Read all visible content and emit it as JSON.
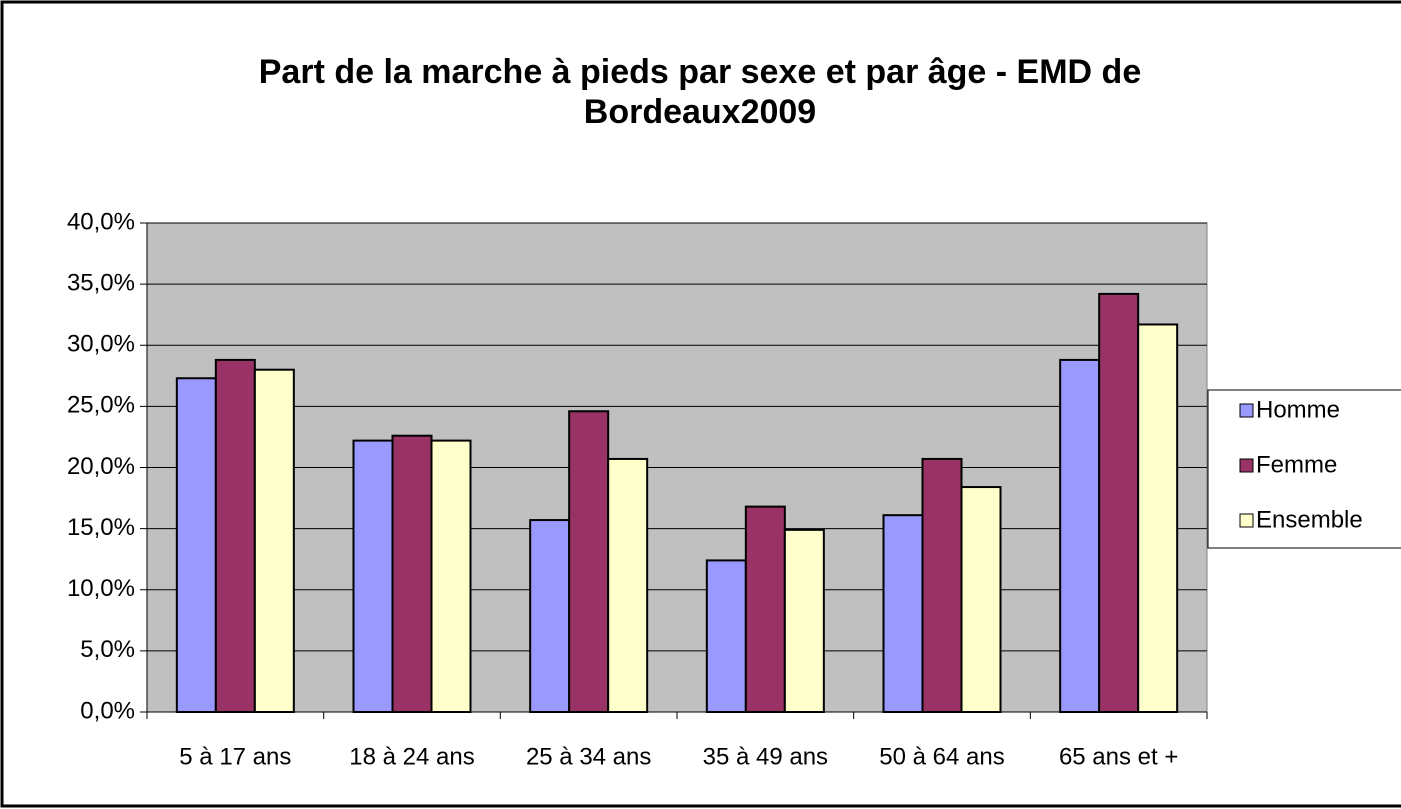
{
  "chart_data": {
    "type": "bar",
    "title": "Part de la marche à pieds par sexe et par âge - EMD de Bordeaux2009",
    "categories": [
      "5 à 17 ans",
      "18 à 24 ans",
      "25 à 34 ans",
      "35 à 49 ans",
      "50 à 64 ans",
      "65 ans et +"
    ],
    "series": [
      {
        "name": "Homme",
        "color": "#9999ff",
        "values": [
          27.3,
          22.2,
          15.7,
          12.4,
          16.1,
          28.8
        ]
      },
      {
        "name": "Femme",
        "color": "#993366",
        "values": [
          28.8,
          22.6,
          24.6,
          16.8,
          20.7,
          34.2
        ]
      },
      {
        "name": "Ensemble",
        "color": "#ffffcc",
        "values": [
          28.0,
          22.2,
          20.7,
          14.9,
          18.4,
          31.7
        ]
      }
    ],
    "ylim": [
      0,
      40
    ],
    "yticks": [
      {
        "value": 0,
        "label": "0,0%"
      },
      {
        "value": 5,
        "label": "5,0%"
      },
      {
        "value": 10,
        "label": "10,0%"
      },
      {
        "value": 15,
        "label": "15,0%"
      },
      {
        "value": 20,
        "label": "20,0%"
      },
      {
        "value": 25,
        "label": "25,0%"
      },
      {
        "value": 30,
        "label": "30,0%"
      },
      {
        "value": 35,
        "label": "35,0%"
      },
      {
        "value": 40,
        "label": "40,0%"
      }
    ],
    "grid": true,
    "plot_background": "#c0c0c0",
    "legend": "right"
  }
}
